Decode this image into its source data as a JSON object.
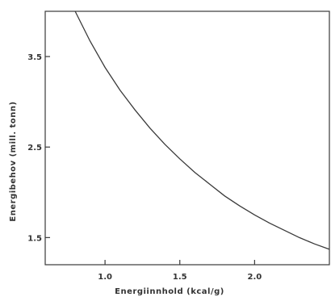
{
  "chart_data": {
    "type": "line",
    "title": "",
    "xlabel": "Energiinnhold (kcal/g)",
    "ylabel": "Energibehov (mill. tonn)",
    "xlim": [
      0.6,
      2.5
    ],
    "ylim": [
      1.2,
      4.0
    ],
    "x_ticks": [
      1.0,
      1.5,
      2.0
    ],
    "x_tick_labels": [
      "1.0",
      "1.5",
      "2.0"
    ],
    "y_ticks": [
      1.5,
      2.5,
      3.5
    ],
    "y_tick_labels": [
      "1.5",
      "2.5",
      "3.5"
    ],
    "grid": false,
    "series": [
      {
        "x": [
          0.8,
          0.9,
          1.0,
          1.1,
          1.2,
          1.3,
          1.4,
          1.5,
          1.6,
          1.7,
          1.8,
          1.9,
          2.0,
          2.1,
          2.2,
          2.3,
          2.4,
          2.5
        ],
        "y": [
          4.0,
          3.67,
          3.38,
          3.13,
          2.91,
          2.71,
          2.53,
          2.37,
          2.22,
          2.09,
          1.96,
          1.85,
          1.75,
          1.66,
          1.58,
          1.5,
          1.43,
          1.37
        ]
      }
    ]
  },
  "colors": {
    "ink": "#3a3a3a",
    "background": "#ffffff"
  }
}
